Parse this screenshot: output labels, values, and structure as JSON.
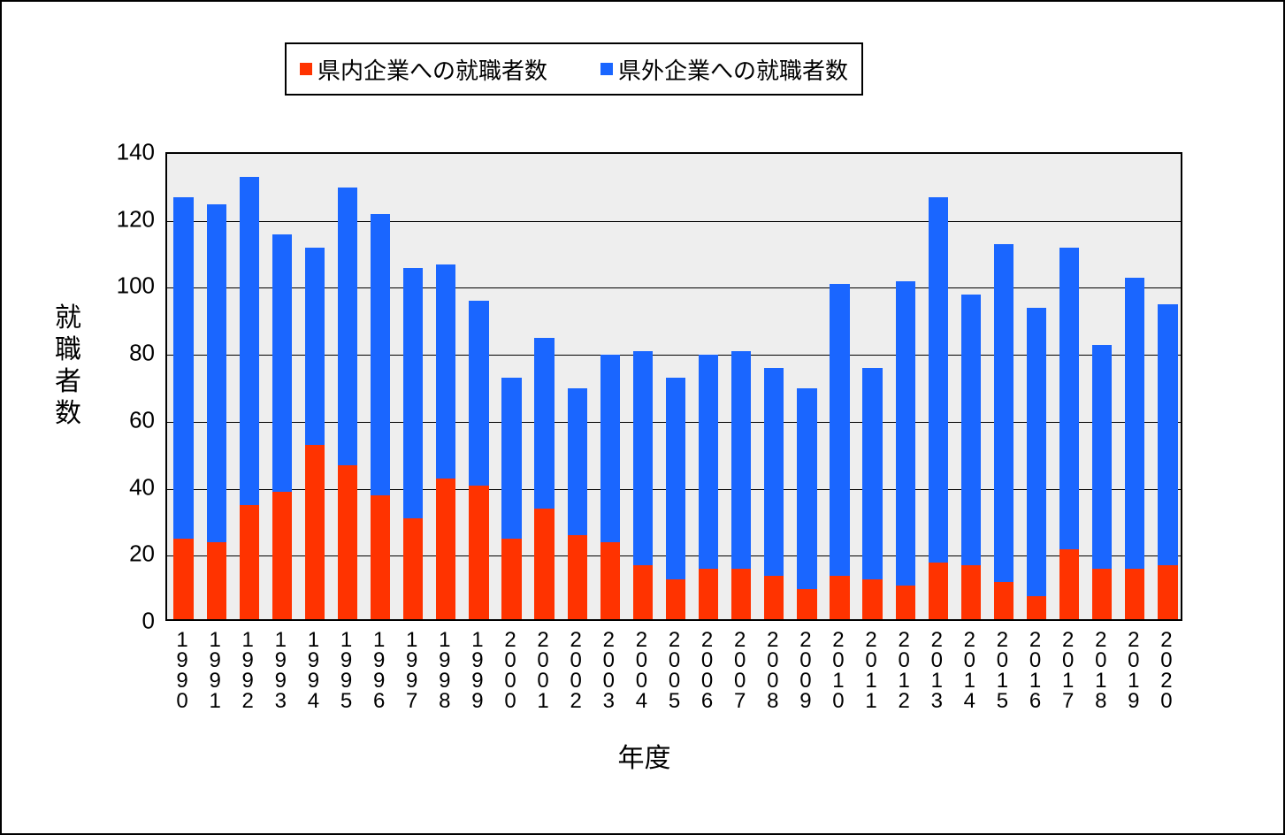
{
  "chart": {
    "type": "stacked-bar",
    "background_color": "#ffffff",
    "plot_background_color": "#eeeeee",
    "border_color": "#000000",
    "grid_color": "#000000",
    "x_label": "年度",
    "y_label": "就職者数",
    "axis_label_fontsize": 30,
    "tick_fontsize": 26,
    "legend_fontsize": 26,
    "y_min": 0,
    "y_max": 140,
    "y_tick_step": 20,
    "y_ticks": [
      0,
      20,
      40,
      60,
      80,
      100,
      120,
      140
    ],
    "bar_width_ratio": 0.6,
    "categories": [
      "1990",
      "1991",
      "1992",
      "1993",
      "1994",
      "1995",
      "1996",
      "1997",
      "1998",
      "1999",
      "2000",
      "2001",
      "2002",
      "2003",
      "2004",
      "2005",
      "2006",
      "2007",
      "2008",
      "2009",
      "2010",
      "2011",
      "2012",
      "2013",
      "2014",
      "2015",
      "2016",
      "2017",
      "2018",
      "2019",
      "2020"
    ],
    "series": [
      {
        "name": "県内企業への就職者数",
        "color": "#ff3300",
        "values": [
          24,
          23,
          34,
          38,
          52,
          46,
          37,
          30,
          42,
          40,
          24,
          33,
          25,
          23,
          16,
          12,
          15,
          15,
          13,
          9,
          13,
          12,
          10,
          17,
          16,
          11,
          7,
          21,
          15,
          15,
          16
        ]
      },
      {
        "name": "県外企業への就職者数",
        "color": "#1a66ff",
        "values": [
          102,
          101,
          98,
          77,
          59,
          83,
          84,
          75,
          64,
          55,
          48,
          51,
          44,
          56,
          64,
          60,
          64,
          65,
          62,
          60,
          87,
          63,
          91,
          109,
          81,
          101,
          86,
          90,
          67,
          87,
          78
        ]
      }
    ],
    "totals": [
      126,
      124,
      132,
      115,
      111,
      129,
      121,
      105,
      106,
      95,
      72,
      84,
      69,
      79,
      80,
      72,
      79,
      80,
      75,
      69,
      100,
      75,
      101,
      126,
      97,
      112,
      93,
      111,
      82,
      102,
      94
    ]
  }
}
